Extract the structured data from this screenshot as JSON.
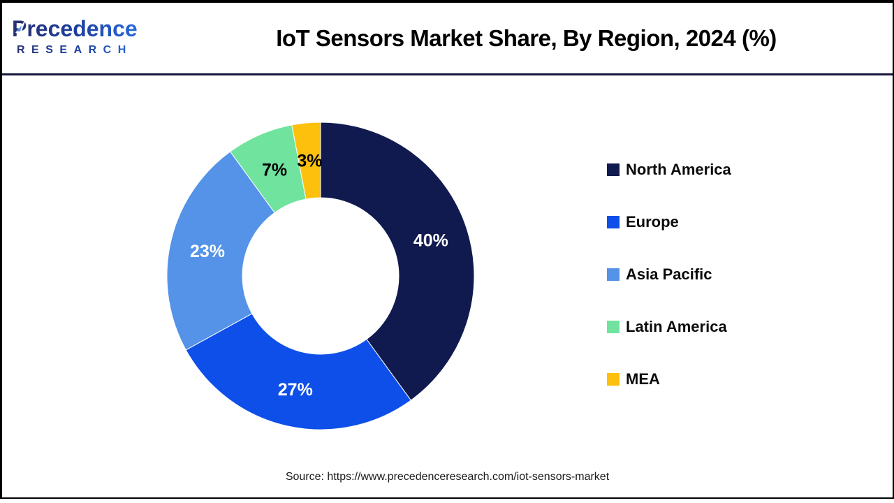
{
  "header": {
    "logo": {
      "wordmark": "Precedence",
      "subtext": "RESEARCH"
    },
    "title": "IoT Sensors Market Share, By Region, 2024 (%)"
  },
  "footer": {
    "source": "Source: https://www.precedenceresearch.com/iot-sensors-market"
  },
  "chart_data": {
    "type": "pie",
    "subtype": "donut",
    "title": "IoT Sensors Market Share, By Region, 2024 (%)",
    "unit": "%",
    "categories": [
      "North America",
      "Europe",
      "Asia Pacific",
      "Latin America",
      "MEA"
    ],
    "values": [
      40,
      27,
      23,
      7,
      3
    ],
    "data_labels": [
      "40%",
      "27%",
      "23%",
      "7%",
      "3%"
    ],
    "slice_colors": [
      "#101A4F",
      "#0E4FE9",
      "#5493E8",
      "#70E39E",
      "#FDC10D"
    ],
    "data_label_colors": [
      "#FFFFFF",
      "#FFFFFF",
      "#FFFFFF",
      "#000000",
      "#000000"
    ],
    "start_angle_deg": 0,
    "direction": "clockwise",
    "donut_hole_ratio": 0.51,
    "legend_position": "right",
    "grid": false
  }
}
